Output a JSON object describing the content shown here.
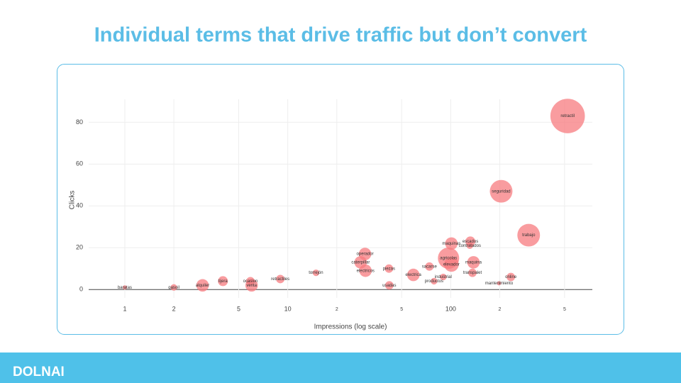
{
  "chart_data": {
    "type": "scatter",
    "title": "Individual terms that drive traffic but don’t convert",
    "x_label": "Impressions (log scale)",
    "y_label": "Clicks",
    "x_log": true,
    "grid": true,
    "color": "#f77b7f",
    "xlim": [
      0.6,
      740
    ],
    "ylim": [
      -4,
      91
    ],
    "xticks": [
      1,
      2,
      5,
      10,
      {
        "value": 20,
        "label": "2"
      },
      {
        "value": 50,
        "label": "5"
      },
      100,
      {
        "value": 200,
        "label": "2"
      },
      {
        "value": 500,
        "label": "5"
      }
    ],
    "yticks": [
      0,
      20,
      40,
      60,
      80
    ],
    "labels": [
      "retractil",
      "seguridad",
      "trabajo",
      "maquinas",
      "escados",
      "contratados",
      "agricolas",
      "elevador",
      "maquina",
      "transpalet",
      "online",
      "mantenimiento",
      "operador",
      "caterpillar",
      "electricos",
      "piezas",
      "electrica",
      "sacarse",
      "industrial",
      "productos",
      "torrejón",
      "retractiles",
      "tijera",
      "ocasion",
      "baratas",
      "gasoil",
      "alquiler",
      "venta",
      "usadas"
    ],
    "x": [
      522,
      204,
      301,
      101,
      132,
      131,
      97,
      101,
      138,
      136,
      234,
      198,
      29.8,
      28,
      30,
      41.8,
      59,
      74,
      90,
      79,
      14.9,
      9,
      4,
      5.9,
      1,
      2,
      3,
      6,
      42
    ],
    "values": [
      83,
      47,
      26,
      22,
      23,
      21,
      15,
      12,
      13,
      8,
      6,
      3,
      17,
      13,
      9,
      10,
      7,
      11,
      6,
      4,
      8,
      5,
      4,
      4,
      1,
      1,
      2,
      2,
      2
    ],
    "sizes": [
      40,
      18,
      18,
      6,
      4,
      2,
      16,
      8,
      6,
      3,
      3,
      1,
      6,
      6,
      6,
      3,
      6,
      3,
      2,
      2,
      2,
      3,
      4,
      3,
      1,
      2,
      6,
      6,
      3
    ]
  },
  "logo": "DOLNAI"
}
